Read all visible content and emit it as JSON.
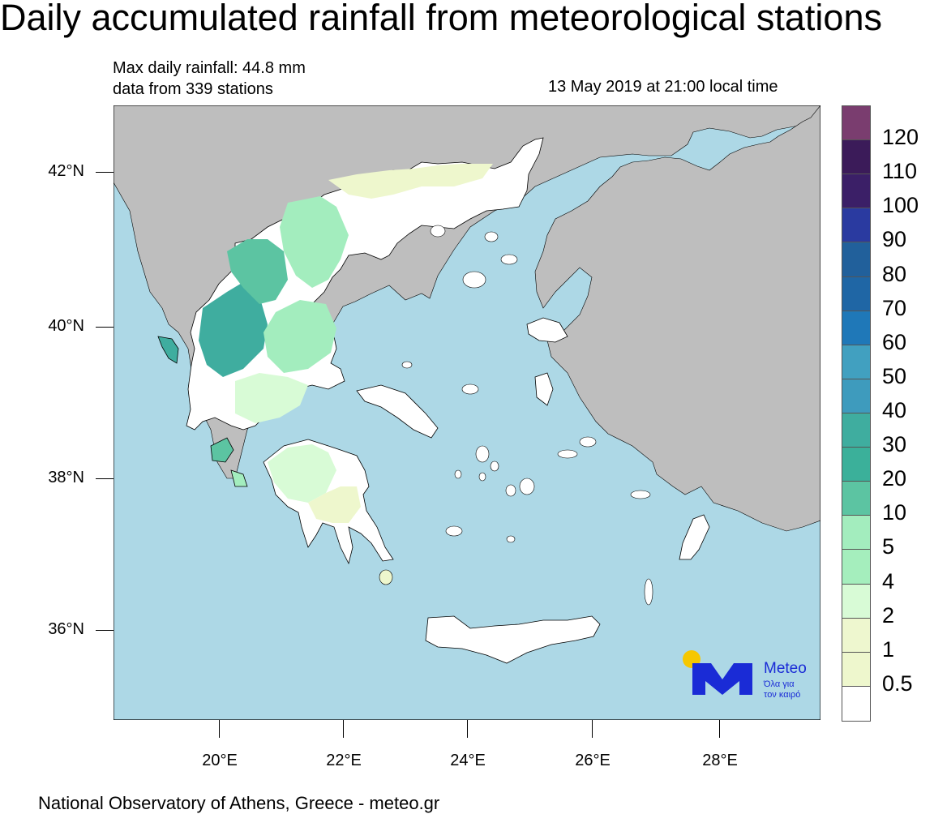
{
  "title": "Daily accumulated rainfall from meteorological stations",
  "info": {
    "max_rainfall": "Max daily rainfall: 44.8 mm",
    "stations": "data from 339 stations",
    "timestamp": "13 May 2019 at 21:00 local time"
  },
  "axes": {
    "lat_labels": [
      "42°N",
      "40°N",
      "38°N",
      "36°N"
    ],
    "lon_labels": [
      "20°E",
      "22°E",
      "24°E",
      "26°E",
      "28°E"
    ]
  },
  "legend": {
    "labels": [
      "120",
      "110",
      "100",
      "90",
      "80",
      "70",
      "60",
      "50",
      "40",
      "30",
      "20",
      "10",
      "5",
      "4",
      "2",
      "1",
      "0.5"
    ],
    "colors": [
      "#7a3d6f",
      "#3b1b59",
      "#3b1f67",
      "#2a3aa0",
      "#21609b",
      "#1f66a5",
      "#1f78b8",
      "#41a0c0",
      "#3e9bbd",
      "#3fad9f",
      "#3bb09a",
      "#5cc4a2",
      "#a3edbe",
      "#a5eebd",
      "#d8fbd6",
      "#eef7cf",
      "#eef7cd",
      "#ffffff"
    ]
  },
  "colors": {
    "sea": "#add8e6",
    "land_other": "#bebebe",
    "greece_dry": "#ffffff"
  },
  "logo": {
    "name": "Meteo",
    "line1": "Όλα για",
    "line2": "τον καιρό"
  },
  "footer": "National Observatory of Athens, Greece - meteo.gr"
}
